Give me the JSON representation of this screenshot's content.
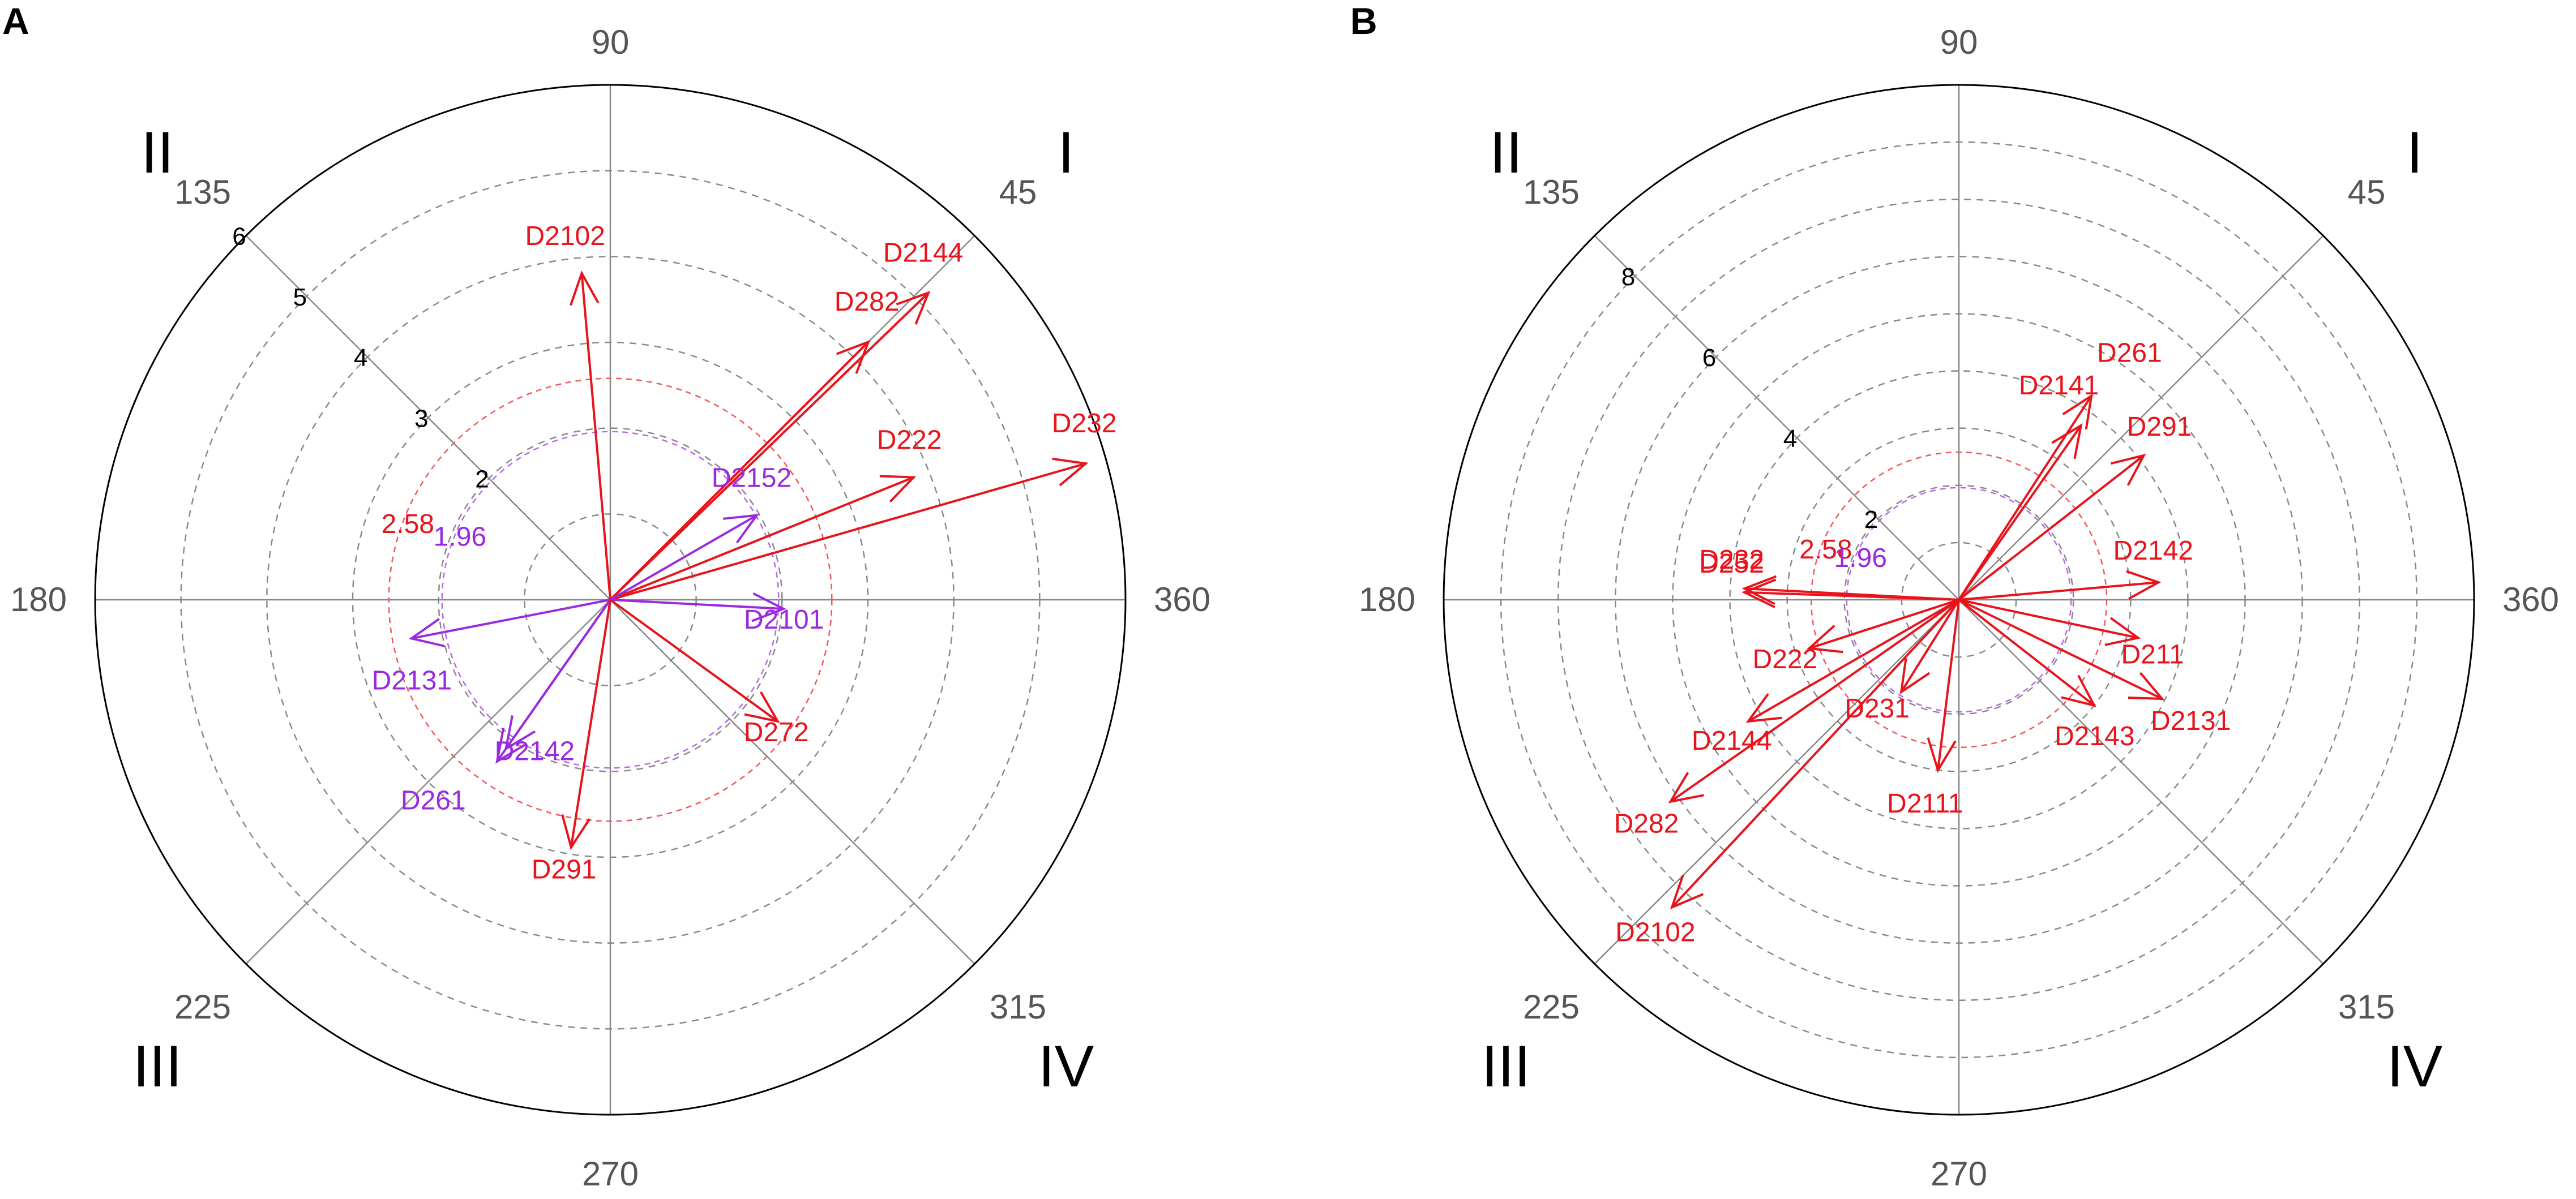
{
  "colors": {
    "red": "#e8131b",
    "purple": "#9a2ae0",
    "axis": "#888888",
    "grid": "#8a8a8a",
    "outer": "#000000"
  },
  "chart_data": [
    {
      "type": "polar-vector",
      "panel": "A",
      "angle_labels": [
        "90",
        "45",
        "360",
        "315",
        "270",
        "225",
        "180",
        "135"
      ],
      "quadrants": [
        "I",
        "II",
        "III",
        "IV"
      ],
      "rmax": 6,
      "ring_ticks": [
        2,
        3,
        4,
        5,
        6
      ],
      "thresholds": [
        {
          "label": "2.58",
          "value": 2.58,
          "color": "#e8131b"
        },
        {
          "label": "1.96",
          "value": 1.96,
          "color": "#9a2ae0"
        }
      ],
      "vectors": [
        {
          "name": "D2102",
          "angle": 95,
          "length": 3.82,
          "color": "red",
          "label_dx": -100,
          "label_dy": -50
        },
        {
          "name": "D2144",
          "angle": 44,
          "length": 5.15,
          "color": "red",
          "label_dx": -80,
          "label_dy": -55
        },
        {
          "name": "D282",
          "angle": 45,
          "length": 4.25,
          "color": "red",
          "label_dx": -60,
          "label_dy": -55
        },
        {
          "name": "D222",
          "angle": 22,
          "length": 3.81,
          "color": "red",
          "label_dx": -65,
          "label_dy": -50
        },
        {
          "name": "D232",
          "angle": 16,
          "length": 5.76,
          "color": "red",
          "label_dx": -60,
          "label_dy": -55
        },
        {
          "name": "D2152",
          "angle": 30,
          "length": 1.97,
          "color": "purple",
          "label_dx": -80,
          "label_dy": -50
        },
        {
          "name": "D2101",
          "angle": -3,
          "length": 2.02,
          "color": "purple",
          "label_dx": -70,
          "label_dy": 35
        },
        {
          "name": "D2131",
          "angle": 191,
          "length": 2.36,
          "color": "purple",
          "label_dx": -70,
          "label_dy": 90
        },
        {
          "name": "D2142",
          "angle": 235,
          "length": 2.12,
          "color": "purple",
          "label_dx": -20,
          "label_dy": 20
        },
        {
          "name": "D261",
          "angle": 235,
          "length": 2.3,
          "color": "purple",
          "label_dx": -170,
          "label_dy": 85
        },
        {
          "name": "D272",
          "angle": -36,
          "length": 2.41,
          "color": "red",
          "label_dx": -60,
          "label_dy": 35
        },
        {
          "name": "D291",
          "angle": -99,
          "length": 2.92,
          "color": "red",
          "label_dx": -70,
          "label_dy": 55
        }
      ]
    },
    {
      "type": "polar-vector",
      "panel": "B",
      "angle_labels": [
        "90",
        "45",
        "360",
        "315",
        "270",
        "225",
        "180",
        "135"
      ],
      "quadrants": [
        "I",
        "II",
        "III",
        "IV"
      ],
      "rmax": 9,
      "ring_ticks": [
        2,
        4,
        6,
        8
      ],
      "thresholds": [
        {
          "label": "2.58",
          "value": 2.58,
          "color": "#e8131b"
        },
        {
          "label": "1.96",
          "value": 1.96,
          "color": "#9a2ae0"
        }
      ],
      "vectors": [
        {
          "name": "D261",
          "angle": 57,
          "length": 4.25,
          "color": "red",
          "label_dx": 10,
          "label_dy": -60
        },
        {
          "name": "D2141",
          "angle": 55,
          "length": 3.72,
          "color": "red",
          "label_dx": -110,
          "label_dy": -55
        },
        {
          "name": "D291",
          "angle": 38,
          "length": 4.1,
          "color": "red",
          "label_dx": -30,
          "label_dy": -35
        },
        {
          "name": "D2142",
          "angle": 5,
          "length": 3.5,
          "color": "red",
          "label_dx": -80,
          "label_dy": -40
        },
        {
          "name": "D211",
          "angle": -12,
          "length": 3.2,
          "color": "red",
          "label_dx": -30,
          "label_dy": 45
        },
        {
          "name": "D2131",
          "angle": -26,
          "length": 3.95,
          "color": "red",
          "label_dx": -20,
          "label_dy": 55
        },
        {
          "name": "D2143",
          "angle": -38,
          "length": 3.0,
          "color": "red",
          "label_dx": -70,
          "label_dy": 70
        },
        {
          "name": "D2111",
          "angle": -97,
          "length": 3.0,
          "color": "red",
          "label_dx": -90,
          "label_dy": 75
        },
        {
          "name": "D231",
          "angle": -122,
          "length": 1.9,
          "color": "red",
          "label_dx": -100,
          "label_dy": 45
        },
        {
          "name": "D2144",
          "angle": -150,
          "length": 4.25,
          "color": "red",
          "label_dx": -100,
          "label_dy": 50
        },
        {
          "name": "D282",
          "angle": -145,
          "length": 6.15,
          "color": "red",
          "label_dx": -100,
          "label_dy": 55
        },
        {
          "name": "D2102",
          "angle": -133,
          "length": 7.35,
          "color": "red",
          "label_dx": -100,
          "label_dy": 60
        },
        {
          "name": "D222",
          "angle": -162,
          "length": 2.75,
          "color": "red",
          "label_dx": -100,
          "label_dy": 35
        },
        {
          "name": "D252",
          "angle": 178,
          "length": 3.75,
          "color": "red",
          "label_dx": -80,
          "label_dy": -35
        },
        {
          "name": "D232",
          "angle": 177,
          "length": 3.75,
          "color": "red",
          "label_dx": -80,
          "label_dy": -35
        }
      ]
    }
  ]
}
